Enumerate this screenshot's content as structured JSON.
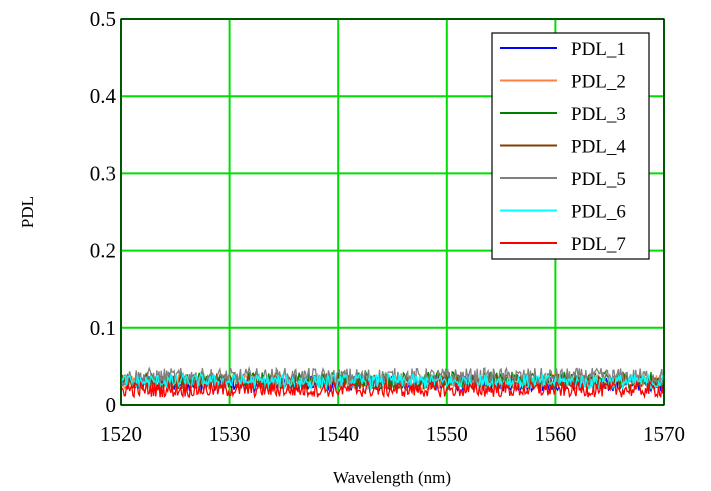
{
  "chart_data": {
    "type": "line",
    "title": "",
    "xlabel": "Wavelength (nm)",
    "ylabel": "PDL",
    "xlim": [
      1520,
      1570
    ],
    "ylim": [
      0,
      0.5
    ],
    "xticks": [
      1520,
      1530,
      1540,
      1550,
      1560,
      1570
    ],
    "yticks": [
      0,
      0.1,
      0.2,
      0.3,
      0.4,
      0.5
    ],
    "xtick_labels": [
      "1520",
      "1530",
      "1540",
      "1550",
      "1560",
      "1570"
    ],
    "ytick_labels": [
      "0",
      "0.1",
      "0.2",
      "0.3",
      "0.4",
      "0.5"
    ],
    "grid": true,
    "grid_color": "#00dd00",
    "legend_position": "top-right",
    "x_step": 0.1,
    "series": [
      {
        "name": "PDL_1",
        "color": "#0000ff",
        "mean": 0.028,
        "noise": 0.01
      },
      {
        "name": "PDL_2",
        "color": "#ff8040",
        "mean": 0.03,
        "noise": 0.01
      },
      {
        "name": "PDL_3",
        "color": "#008000",
        "mean": 0.032,
        "noise": 0.011
      },
      {
        "name": "PDL_4",
        "color": "#804000",
        "mean": 0.03,
        "noise": 0.01
      },
      {
        "name": "PDL_5",
        "color": "#808080",
        "mean": 0.036,
        "noise": 0.012
      },
      {
        "name": "PDL_6",
        "color": "#00ffff",
        "mean": 0.03,
        "noise": 0.01
      },
      {
        "name": "PDL_7",
        "color": "#ff0000",
        "mean": 0.02,
        "noise": 0.01
      }
    ]
  }
}
